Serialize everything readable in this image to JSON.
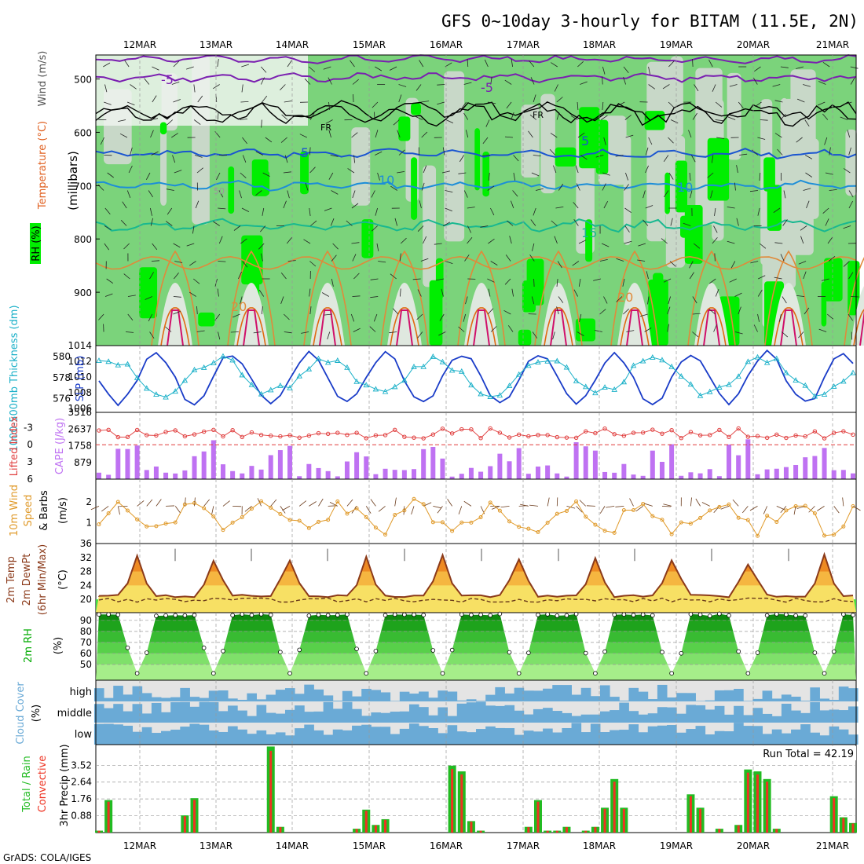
{
  "title": "GFS 0~10day 3-hourly for BITAM (11.5E, 2N)",
  "credit": "GrADS: COLA/IGES",
  "colors": {
    "rh_dark": "#00ee00",
    "rh_mid": "#7bd37b",
    "rh_light": "#c8d8c8",
    "temp_label": "#e06020",
    "wind_label": "#555555",
    "thickness": "#1ab0c8",
    "slp": "#1a3cc8",
    "lifted": "#e03c3c",
    "cape": "#bf72f2",
    "wind10m": "#e09a2a",
    "t2m": "#8b3a1a",
    "rh2m": "#00aa00",
    "cloud": "#6aaad6",
    "cloud_bg": "#e4e4e4",
    "precip_total": "#22bb22",
    "precip_conv": "#ee3322"
  },
  "chart_data": [
    {
      "type": "heatmap",
      "name": "upper air cross-section",
      "ylabels": [
        "Wind (m/s)",
        "Temperature (°C)",
        "RH (%)"
      ],
      "yunit": "(millibars)",
      "yticks": [
        500,
        600,
        700,
        800,
        900
      ],
      "ylim": [
        1000,
        455
      ],
      "x_dates": [
        "12MAR",
        "13MAR",
        "14MAR",
        "15MAR",
        "16MAR",
        "17MAR",
        "18MAR",
        "19MAR",
        "20MAR",
        "21MAR"
      ],
      "contour_labels": [
        "-5",
        "-5",
        "FR",
        "FR",
        "5",
        "5",
        "10",
        "10",
        "15",
        "20",
        "20",
        "50"
      ]
    },
    {
      "type": "line",
      "name": "thickness and slp",
      "ylabel_left": "1000-500mb Thickness (dm)",
      "ylabel_right": "SLP (mb)",
      "yticks_left": [
        576,
        578,
        580
      ],
      "yticks_right": [
        1006,
        1008,
        1010,
        1012,
        1014
      ],
      "ylim_slp": [
        1005.5,
        1014
      ]
    },
    {
      "type": "bar",
      "name": "lifted index and cape",
      "ylabel_left": "Lifted Index",
      "ylabel_right": "CAPE (J/kg)",
      "yticks_li": [
        "-3",
        "0",
        "3",
        "6"
      ],
      "yticks_cape": [
        879,
        1758,
        2637,
        3516
      ]
    },
    {
      "type": "line",
      "name": "10m wind",
      "ylabel_left": "10m Wind",
      "ylabel_mid": "Speed",
      "ylabel_right": "& Barbs",
      "yunit": "(m/s)",
      "yticks": [
        1,
        2
      ]
    },
    {
      "type": "area",
      "name": "2m temperature",
      "ylabel1": "2m Temp",
      "ylabel2": "2m DewPt",
      "ylabel3": "(6hr Min/Max)",
      "yunit": "(°C)",
      "yticks": [
        20,
        24,
        28,
        32,
        36
      ]
    },
    {
      "type": "area",
      "name": "2m relative humidity",
      "ylabel": "2m RH",
      "yunit": "(%)",
      "yticks": [
        50,
        60,
        70,
        80,
        90
      ]
    },
    {
      "type": "area",
      "name": "cloud cover",
      "ylabel": "Cloud Cover",
      "yunit": "(%)",
      "levels": [
        "high",
        "middle",
        "low"
      ]
    },
    {
      "type": "bar",
      "name": "3hr precipitation",
      "ylabel_left": "Total / Rain",
      "ylabel_left2": "Convective",
      "ylabel_right": "3hr Precip (mm)",
      "yticks": [
        0.88,
        1.76,
        2.64,
        3.52
      ],
      "run_total": "Run Total = 42.19",
      "ylim": [
        0,
        4.6
      ]
    }
  ]
}
